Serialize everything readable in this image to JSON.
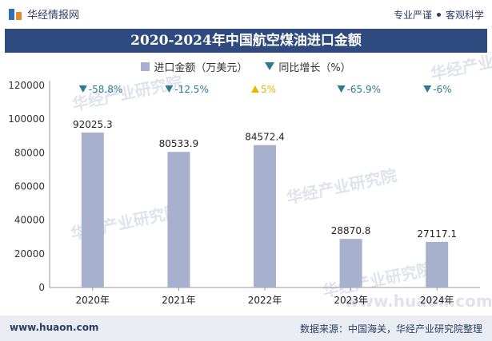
{
  "header": {
    "logo_text": "华经情报网",
    "tagline_left": "专业严谨",
    "tagline_right": "客观科学"
  },
  "footer": {
    "website": "www.huaon.com",
    "source": "数据来源：中国海关，华经产业研究院整理"
  },
  "watermark": {
    "text": "华经产业研究院",
    "url": "www.huaon.com"
  },
  "colors": {
    "bar": "#a7b1ce",
    "title_bg": "#2f4a7e",
    "down": "#2e7a94",
    "up": "#e6b800"
  },
  "chart_data": {
    "type": "bar",
    "title": "2020-2024年中国航空煤油进口金额",
    "categories": [
      "2020年",
      "2021年",
      "2022年",
      "2023年",
      "2024年"
    ],
    "series": [
      {
        "name": "进口金额（万美元）",
        "values": [
          92025.3,
          80533.9,
          84572.4,
          28870.8,
          27117.1
        ]
      },
      {
        "name": "同比增长（%）",
        "values": [
          -58.8,
          -12.5,
          5,
          -65.9,
          -6
        ]
      }
    ],
    "value_labels": [
      "92025.3",
      "80533.9",
      "84572.4",
      "28870.8",
      "27117.1"
    ],
    "growth_labels": [
      "-58.8%",
      "-12.5%",
      "5%",
      "-65.9%",
      "-6%"
    ],
    "y_ticks": [
      "0",
      "20000",
      "40000",
      "60000",
      "80000",
      "100000",
      "120000"
    ],
    "ylim": [
      0,
      120000
    ],
    "legend": [
      "进口金额（万美元）",
      "同比增长（%）"
    ]
  }
}
